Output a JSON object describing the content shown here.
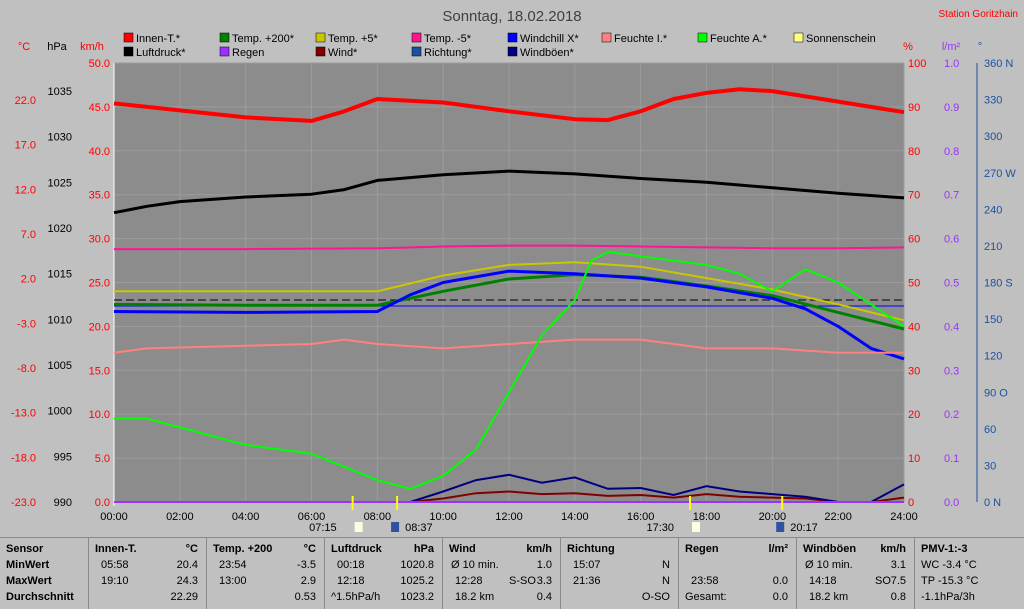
{
  "header": {
    "title": "Sonntag, 18.02.2018",
    "station": "Station Goritzhain"
  },
  "legend": [
    {
      "label": "Innen-T.*",
      "color": "#ff0000"
    },
    {
      "label": "Luftdruck*",
      "color": "#000000"
    },
    {
      "label": "Temp. +200*",
      "color": "#008000"
    },
    {
      "label": "Regen",
      "color": "#9b30ff"
    },
    {
      "label": "Temp. +5*",
      "color": "#c8c800"
    },
    {
      "label": "Wind*",
      "color": "#800000"
    },
    {
      "label": "Temp. -5*",
      "color": "#ff1493"
    },
    {
      "label": "Richtung*",
      "color": "#1e50a0"
    },
    {
      "label": "Windchill X*",
      "color": "#0000ff"
    },
    {
      "label": "Windböen*",
      "color": "#000080"
    },
    {
      "label": "Feuchte I.*",
      "color": "#ff8080"
    },
    {
      "label": "Feuchte A.*",
      "color": "#00ff00"
    },
    {
      "label": "Sonnenschein",
      "color": "#ffff80"
    }
  ],
  "axes": {
    "temp": {
      "unit": "°C",
      "ticks": [
        "22.0",
        "17.0",
        "12.0",
        "7.0",
        "2.0",
        "-3.0",
        "-8.0",
        "-13.0",
        "-18.0",
        "-23.0"
      ],
      "color": "#ff0000"
    },
    "pressure": {
      "unit": "hPa",
      "ticks": [
        "1035",
        "1030",
        "1025",
        "1020",
        "1015",
        "1010",
        "1005",
        "1000",
        "995",
        "990"
      ],
      "color": "#000000"
    },
    "wind": {
      "unit": "km/h",
      "ticks": [
        "50.0",
        "45.0",
        "40.0",
        "35.0",
        "30.0",
        "25.0",
        "20.0",
        "15.0",
        "10.0",
        "5.0",
        "0.0"
      ],
      "color": "#ff0000"
    },
    "humidity": {
      "unit": "%",
      "ticks": [
        "100",
        "90",
        "80",
        "70",
        "60",
        "50",
        "40",
        "30",
        "20",
        "10",
        "0"
      ],
      "color": "#ff0000"
    },
    "rain": {
      "unit": "l/m²",
      "ticks": [
        "1.0",
        "0.9",
        "0.8",
        "0.7",
        "0.6",
        "0.5",
        "0.4",
        "0.3",
        "0.2",
        "0.1",
        "0.0"
      ],
      "color": "#9b30ff"
    },
    "direction": {
      "unit": "°",
      "ticks": [
        "360 N",
        "330",
        "300",
        "270 W",
        "240",
        "210",
        "180 S",
        "150",
        "120",
        "90 O",
        "60",
        "30",
        "0 N"
      ],
      "color": "#1e50a0"
    },
    "time": {
      "ticks": [
        "00:00",
        "02:00",
        "04:00",
        "06:00",
        "08:00",
        "10:00",
        "12:00",
        "14:00",
        "16:00",
        "18:00",
        "20:00",
        "22:00",
        "24:00"
      ]
    }
  },
  "sun": {
    "rise": "07:15",
    "rise_noon": "08:37",
    "set": "17:30",
    "set_noon": "20:17"
  },
  "chart_data": {
    "type": "line",
    "title": "Sonntag, 18.02.2018",
    "x_range": [
      "00:00",
      "24:00"
    ],
    "series": [
      {
        "name": "Innen-T.*",
        "axis": "temp",
        "color": "#ff0000",
        "x": [
          0,
          2,
          4,
          6,
          7,
          8,
          10,
          12,
          14,
          15,
          16,
          17,
          18,
          19,
          20,
          22,
          24
        ],
        "y": [
          22.4,
          21.6,
          20.8,
          20.4,
          21.5,
          22.9,
          22.5,
          21.5,
          20.6,
          20.5,
          21.5,
          22.9,
          23.6,
          24.0,
          23.8,
          22.6,
          21.4
        ]
      },
      {
        "name": "Luftdruck*",
        "axis": "pressure",
        "color": "#000000",
        "x": [
          0,
          1,
          2,
          4,
          6,
          7,
          8,
          10,
          12,
          14,
          16,
          18,
          20,
          22,
          24
        ],
        "y": [
          1021.3,
          1022.0,
          1022.5,
          1023.0,
          1023.3,
          1023.8,
          1024.8,
          1025.4,
          1025.8,
          1025.5,
          1025.0,
          1024.6,
          1024.0,
          1023.4,
          1022.9
        ]
      },
      {
        "name": "Temp. +200*",
        "axis": "temp",
        "color": "#008000",
        "x": [
          0,
          4,
          8,
          10,
          12,
          14,
          16,
          18,
          20,
          22,
          24
        ],
        "y": [
          -0.5,
          -0.6,
          -0.6,
          1.0,
          2.4,
          2.9,
          2.6,
          1.6,
          0.5,
          -1.4,
          -3.3
        ]
      },
      {
        "name": "Temp. +5*",
        "axis": "temp",
        "color": "#c8c800",
        "x": [
          0,
          4,
          8,
          10,
          12,
          14,
          16,
          18,
          20,
          22,
          24
        ],
        "y": [
          1.0,
          1.0,
          1.0,
          2.8,
          4.0,
          4.3,
          3.8,
          2.5,
          1.2,
          -0.5,
          -2.3
        ]
      },
      {
        "name": "Temp. -5*",
        "axis": "temp",
        "color": "#ff1493",
        "x": [
          0,
          4,
          8,
          10,
          12,
          14,
          16,
          18,
          20,
          22,
          24
        ],
        "y": [
          5.8,
          5.8,
          5.9,
          6.1,
          6.2,
          6.2,
          6.1,
          6.0,
          5.9,
          5.9,
          6.0
        ]
      },
      {
        "name": "Windchill X*",
        "axis": "temp",
        "color": "#0000ff",
        "x": [
          0,
          4,
          8,
          9,
          10,
          12,
          14,
          16,
          18,
          20,
          21,
          22,
          23,
          24
        ],
        "y": [
          -1.3,
          -1.4,
          -1.3,
          0.6,
          2.0,
          3.3,
          3.0,
          2.5,
          1.5,
          0.2,
          -1.0,
          -3.0,
          -5.5,
          -6.7
        ]
      },
      {
        "name": "Feuchte I.*",
        "axis": "humidity",
        "color": "#ff8080",
        "x": [
          0,
          1,
          6,
          7,
          8,
          10,
          14,
          16,
          18,
          20,
          22,
          24
        ],
        "y": [
          34,
          35,
          36,
          37,
          36,
          35,
          37,
          37,
          35,
          35,
          34,
          34
        ]
      },
      {
        "name": "Feuchte A.*",
        "axis": "humidity",
        "color": "#00ff00",
        "x": [
          0,
          1,
          2,
          4,
          6,
          8,
          9,
          10,
          11,
          12,
          13,
          14,
          14.5,
          15,
          16,
          17,
          18,
          19,
          20,
          21,
          22,
          23,
          24
        ],
        "y": [
          19,
          19,
          17,
          13,
          11,
          5,
          3,
          6,
          12,
          25,
          38,
          46,
          55,
          57,
          56,
          55,
          54,
          52,
          48,
          53,
          50,
          45,
          40
        ]
      },
      {
        "name": "Regen",
        "axis": "rain",
        "color": "#9b30ff",
        "x": [
          0,
          24
        ],
        "y": [
          0,
          0
        ]
      },
      {
        "name": "Wind*",
        "axis": "wind",
        "color": "#800000",
        "x": [
          0,
          9,
          10,
          11,
          12,
          13,
          14,
          15,
          16,
          17,
          18,
          19,
          20,
          21,
          22,
          23,
          24
        ],
        "y": [
          0,
          0,
          0.4,
          1.0,
          1.2,
          0.9,
          1.0,
          0.7,
          0.8,
          0.5,
          0.9,
          0.6,
          0.5,
          0.4,
          0,
          0,
          0.5
        ]
      },
      {
        "name": "Windböen*",
        "axis": "wind",
        "color": "#000080",
        "x": [
          0,
          9,
          10,
          11,
          12,
          13,
          14,
          15,
          16,
          17,
          18,
          19,
          20,
          21,
          22,
          23,
          24
        ],
        "y": [
          0,
          0,
          1.2,
          2.5,
          3.1,
          2.2,
          2.8,
          1.5,
          1.6,
          0.8,
          1.8,
          1.2,
          0.9,
          0.6,
          0,
          0,
          2.0
        ]
      }
    ]
  },
  "stats": {
    "sensor": {
      "title": "Sensor",
      "rows": [
        "MinWert",
        "MaxWert",
        "Durchschnitt"
      ]
    },
    "innen": {
      "title": "Innen-T.",
      "unit": "°C",
      "min_time": "05:58",
      "min": "20.4",
      "max_time": "19:10",
      "max": "24.3",
      "avg": "22.29"
    },
    "temp200": {
      "title": "Temp. +200",
      "unit": "°C",
      "min_time": "23:54",
      "min": "-3.5",
      "max_time": "13:00",
      "max": "2.9",
      "avg": "0.53"
    },
    "luftdruck": {
      "title": "Luftdruck",
      "unit": "hPa",
      "min_time": "00:18",
      "min": "1020.8",
      "max_time": "12:18",
      "max": "1025.2",
      "avg_label": "^1.5hPa/h",
      "avg": "1023.2"
    },
    "wind": {
      "title": "Wind",
      "unit": "km/h",
      "r1_label": "Ø 10 min.",
      "r1": "1.0",
      "r2_label": "12:28",
      "r2_mid": "S-SO",
      "r2": "3.3",
      "r3_label": "18.2 km",
      "r3": "0.4"
    },
    "richtung": {
      "title": "Richtung",
      "r1_label": "15:07",
      "r1": "N",
      "r2_label": "21:36",
      "r2": "N",
      "r3": "O-SO"
    },
    "regen": {
      "title": "Regen",
      "unit": "l/m²",
      "r2_label": "23:58",
      "r2": "0.0",
      "r3_label": "Gesamt:",
      "r3": "0.0"
    },
    "boeen": {
      "title": "Windböen",
      "unit": "km/h",
      "r1_label": "Ø 10 min.",
      "r1": "3.1",
      "r2_label": "14:18",
      "r2_mid": "SO",
      "r2": "7.5",
      "r3_label": "18.2 km",
      "r3": "0.8"
    },
    "pmv": {
      "title": "PMV-1:-3",
      "r1": "WC -3.4 °C",
      "r2": "TP -15.3 °C",
      "r3": "-1.1hPa/3h"
    }
  }
}
